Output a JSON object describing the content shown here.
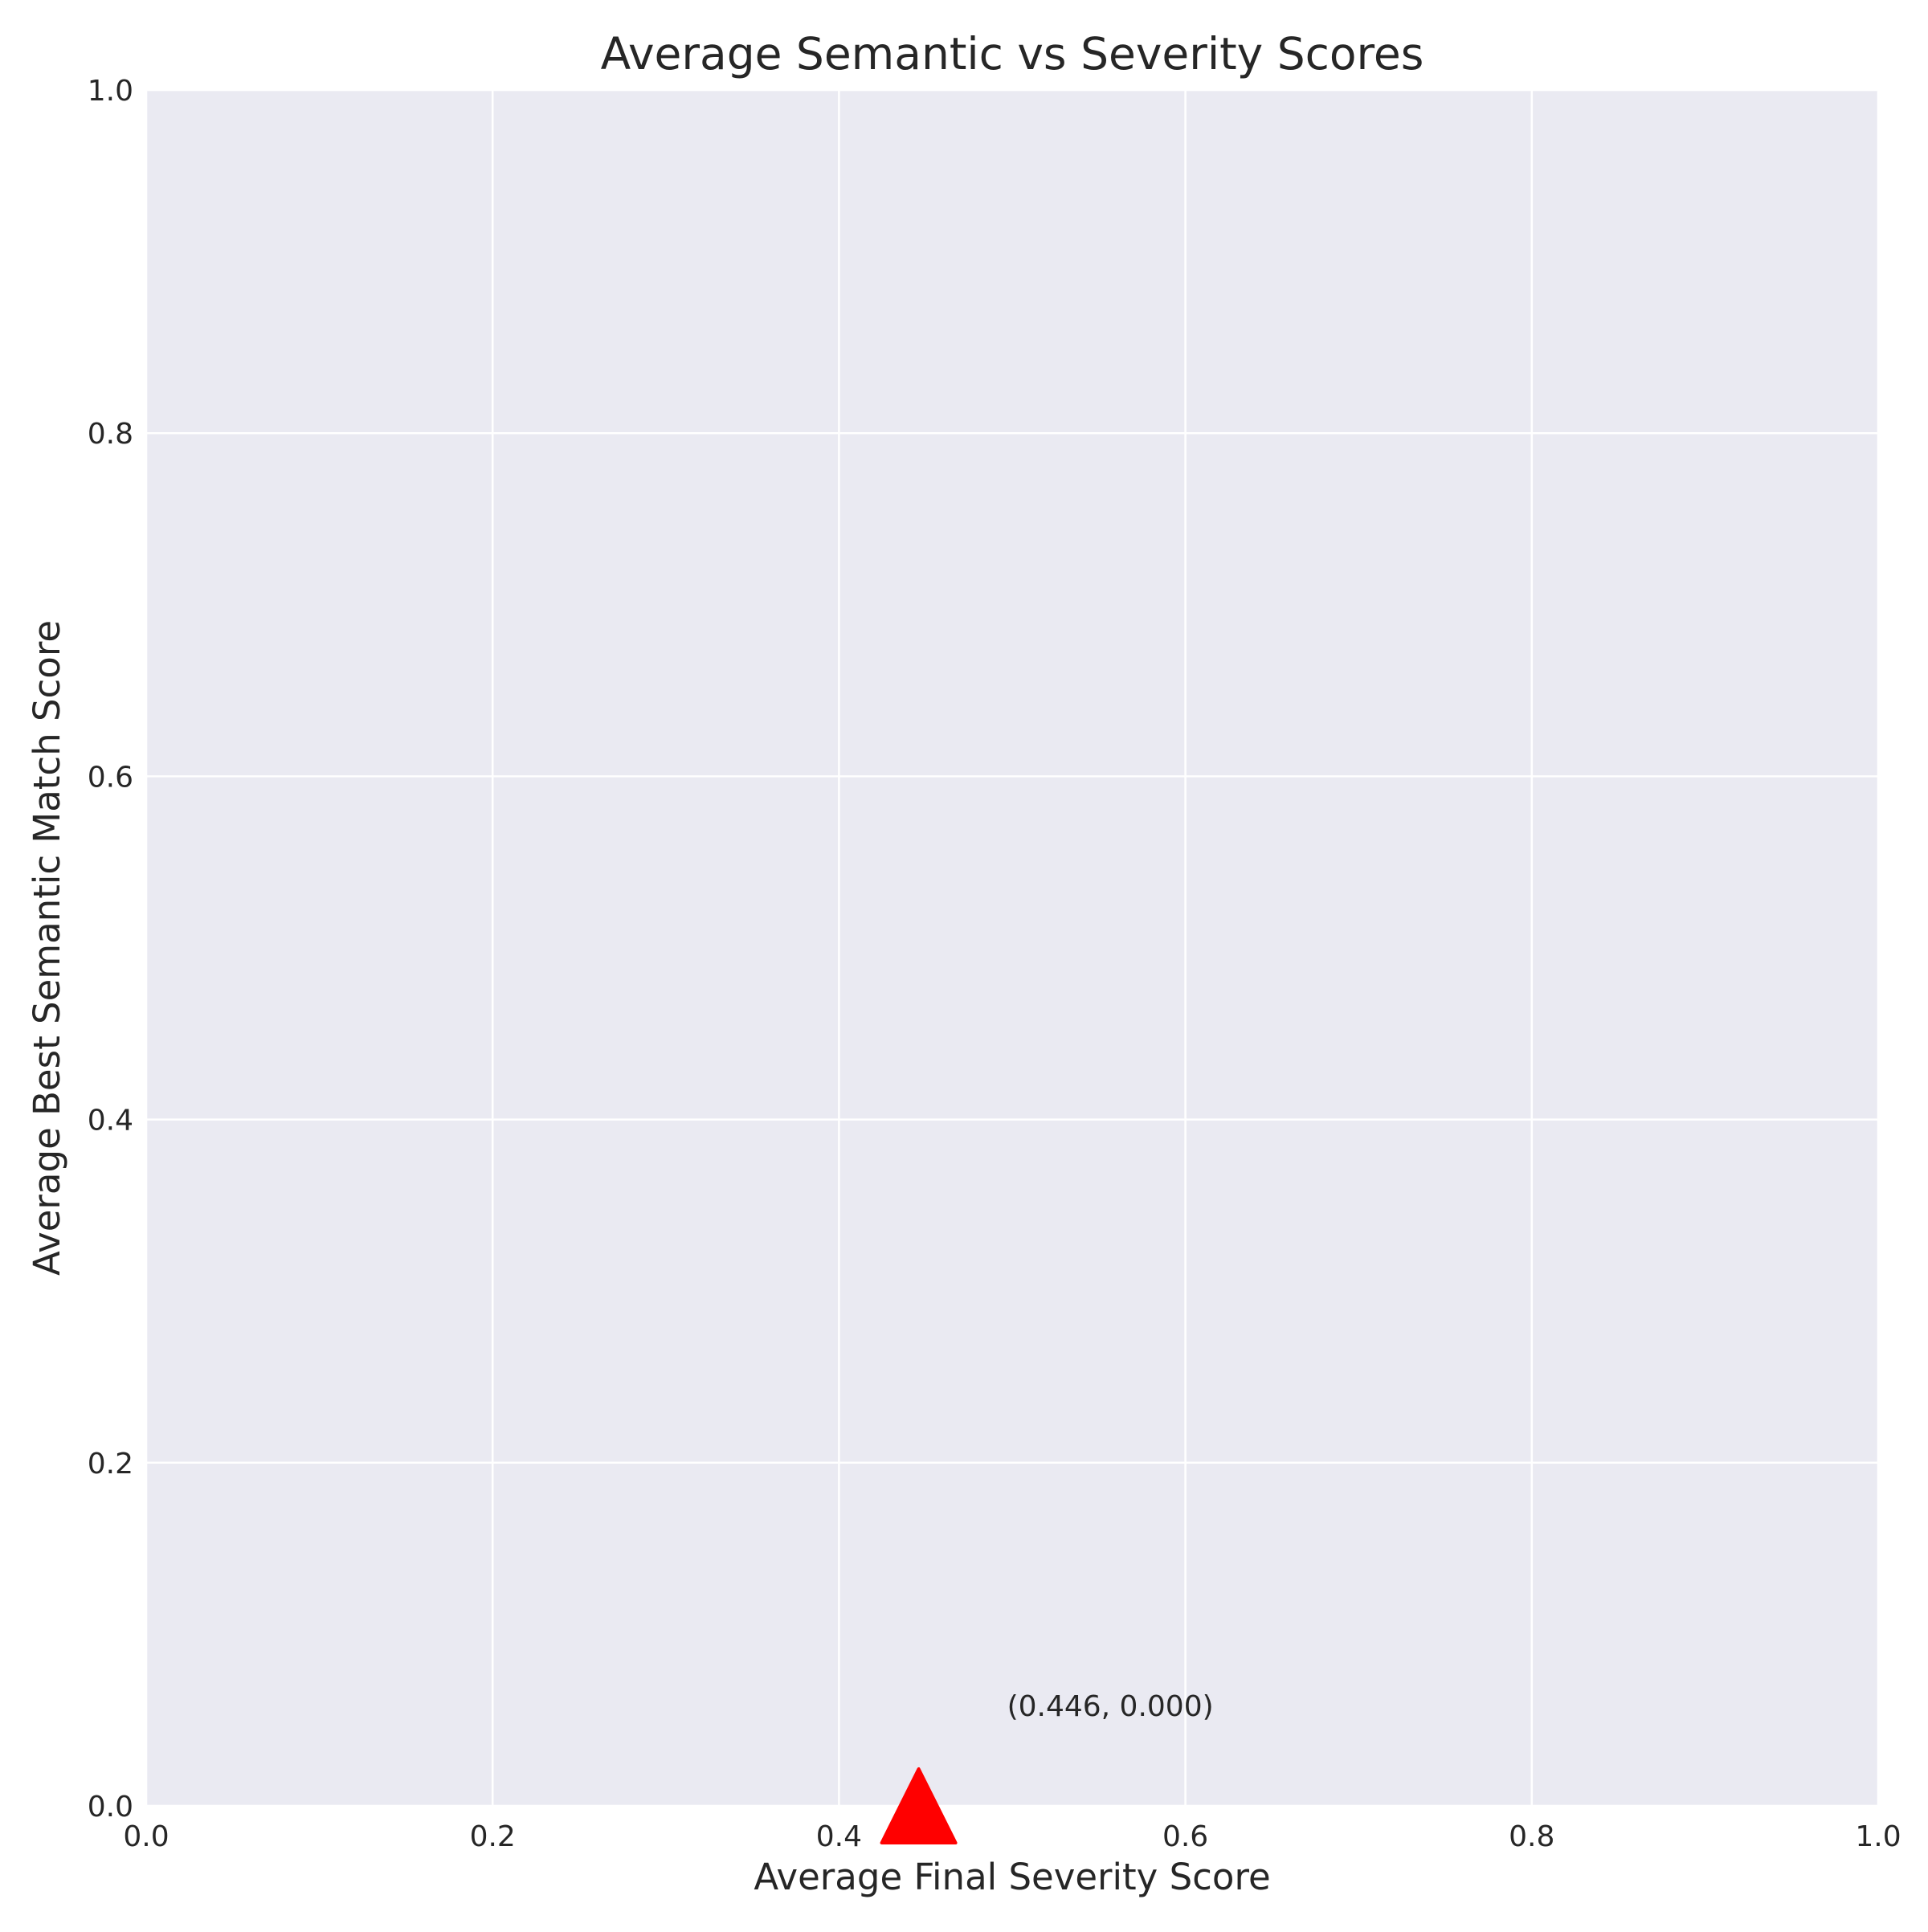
{
  "chart_data": {
    "type": "scatter",
    "title": "Average Semantic vs Severity Scores",
    "xlabel": "Average Final Severity Score",
    "ylabel": "Average Best Semantic Match Score",
    "xlim": [
      0.0,
      1.0
    ],
    "ylim": [
      0.0,
      1.0
    ],
    "xticks": [
      "0.0",
      "0.2",
      "0.4",
      "0.6",
      "0.8",
      "1.0"
    ],
    "yticks": [
      "0.0",
      "0.2",
      "0.4",
      "0.6",
      "0.8",
      "1.0"
    ],
    "grid": true,
    "legend": "none",
    "points": [
      {
        "x": 0.446,
        "y": 0.0,
        "marker": "triangle-up",
        "color": "#ff0000",
        "label": "(0.446, 0.000)"
      }
    ]
  },
  "colors": {
    "plot_background": "#eaeaf2",
    "grid": "#ffffff",
    "text": "#262626",
    "marker": "#ff0000"
  }
}
